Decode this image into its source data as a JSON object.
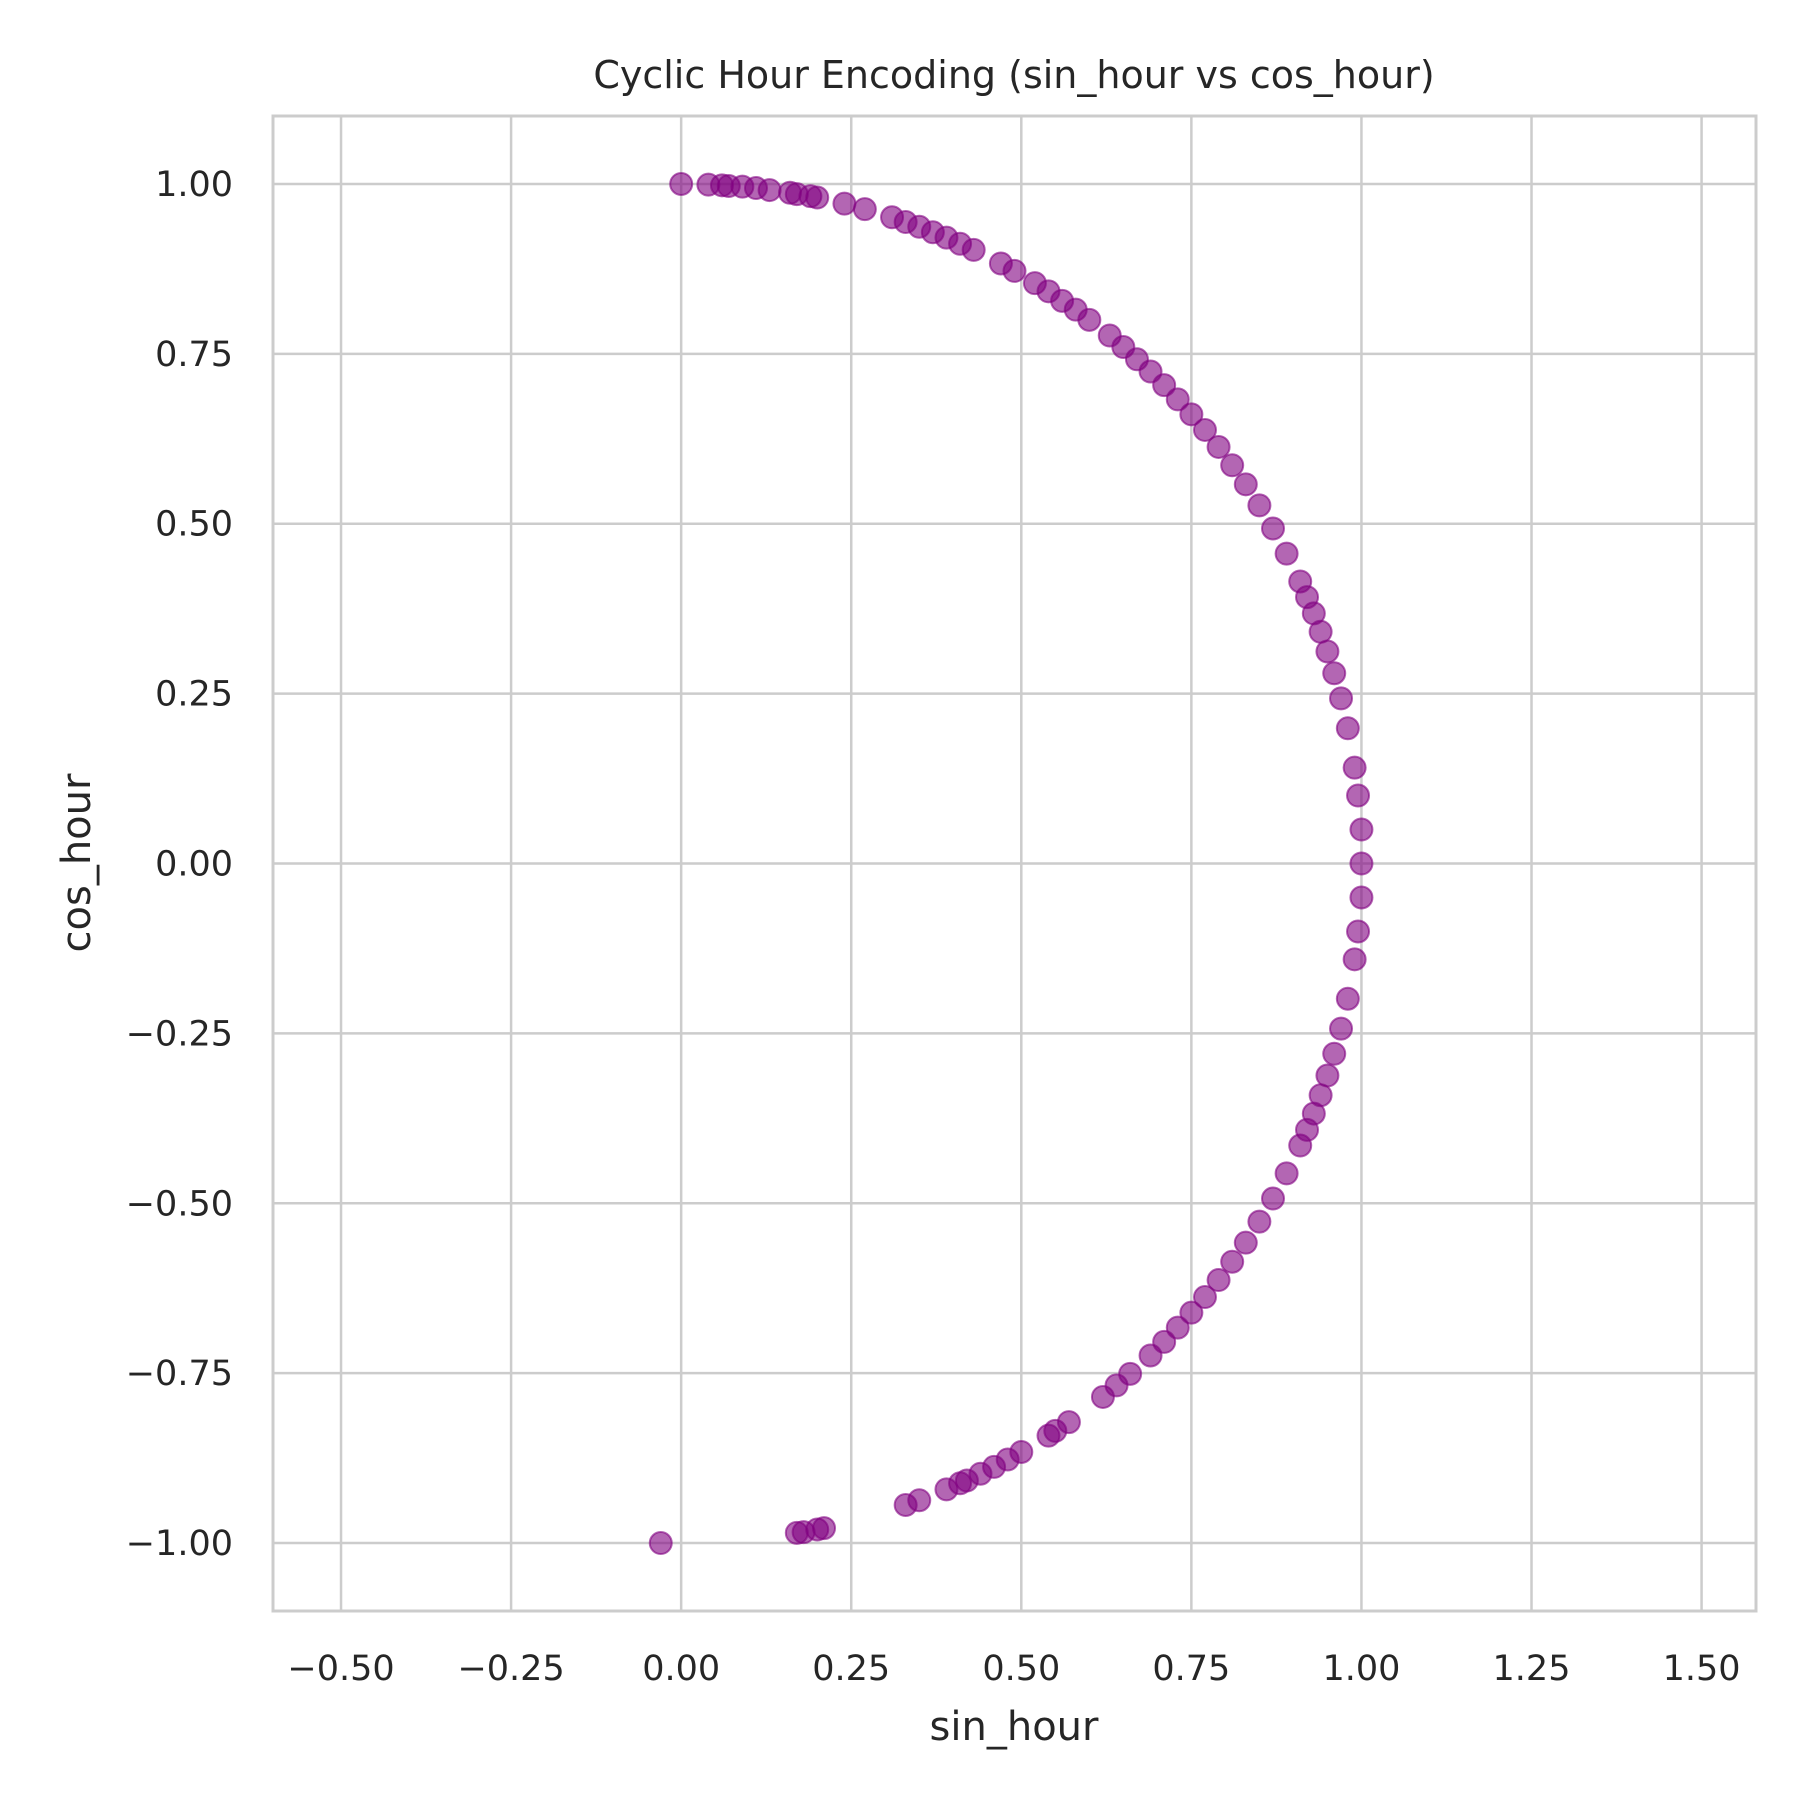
{
  "chart_data": {
    "type": "scatter",
    "title": "Cyclic Hour Encoding (sin_hour vs cos_hour)",
    "xlabel": "sin_hour",
    "ylabel": "cos_hour",
    "xlim": [
      -0.6,
      1.58
    ],
    "ylim": [
      -1.1,
      1.1
    ],
    "xticks": [
      -0.5,
      -0.25,
      0.0,
      0.25,
      0.5,
      0.75,
      1.0,
      1.25,
      1.5
    ],
    "yticks": [
      -1.0,
      -0.75,
      -0.5,
      -0.25,
      0.0,
      0.25,
      0.5,
      0.75,
      1.0
    ],
    "xtick_labels": [
      "−0.50",
      "−0.25",
      "0.00",
      "0.25",
      "0.50",
      "0.75",
      "1.00",
      "1.25",
      "1.50"
    ],
    "ytick_labels": [
      "−1.00",
      "−0.75",
      "−0.50",
      "−0.25",
      "0.00",
      "0.25",
      "0.50",
      "0.75",
      "1.00"
    ],
    "grid": true,
    "legend": "none",
    "marker_color": "#800080",
    "marker_alpha": 0.6,
    "points": [
      [
        0.0,
        1.0
      ],
      [
        0.04,
        0.999
      ],
      [
        0.06,
        0.998
      ],
      [
        0.07,
        0.997
      ],
      [
        0.09,
        0.996
      ],
      [
        0.11,
        0.994
      ],
      [
        0.13,
        0.991
      ],
      [
        0.16,
        0.987
      ],
      [
        0.17,
        0.985
      ],
      [
        0.19,
        0.982
      ],
      [
        0.2,
        0.98
      ],
      [
        0.24,
        0.971
      ],
      [
        0.27,
        0.963
      ],
      [
        0.31,
        0.951
      ],
      [
        0.33,
        0.944
      ],
      [
        0.35,
        0.937
      ],
      [
        0.37,
        0.929
      ],
      [
        0.39,
        0.921
      ],
      [
        0.41,
        0.912
      ],
      [
        0.43,
        0.903
      ],
      [
        0.47,
        0.883
      ],
      [
        0.49,
        0.872
      ],
      [
        0.52,
        0.854
      ],
      [
        0.54,
        0.842
      ],
      [
        0.56,
        0.828
      ],
      [
        0.58,
        0.815
      ],
      [
        0.6,
        0.8
      ],
      [
        0.63,
        0.777
      ],
      [
        0.65,
        0.76
      ],
      [
        0.67,
        0.742
      ],
      [
        0.69,
        0.724
      ],
      [
        0.71,
        0.704
      ],
      [
        0.73,
        0.683
      ],
      [
        0.75,
        0.661
      ],
      [
        0.77,
        0.638
      ],
      [
        0.79,
        0.613
      ],
      [
        0.81,
        0.586
      ],
      [
        0.83,
        0.558
      ],
      [
        0.85,
        0.527
      ],
      [
        0.87,
        0.493
      ],
      [
        0.89,
        0.456
      ],
      [
        0.91,
        0.415
      ],
      [
        0.92,
        0.392
      ],
      [
        0.93,
        0.368
      ],
      [
        0.94,
        0.341
      ],
      [
        0.95,
        0.312
      ],
      [
        0.96,
        0.28
      ],
      [
        0.97,
        0.243
      ],
      [
        0.98,
        0.199
      ],
      [
        0.99,
        0.141
      ],
      [
        0.995,
        0.1
      ],
      [
        1.0,
        0.05
      ],
      [
        1.0,
        0.0
      ],
      [
        1.0,
        -0.05
      ],
      [
        0.995,
        -0.1
      ],
      [
        0.99,
        -0.141
      ],
      [
        0.98,
        -0.199
      ],
      [
        0.97,
        -0.243
      ],
      [
        0.96,
        -0.28
      ],
      [
        0.95,
        -0.312
      ],
      [
        0.94,
        -0.341
      ],
      [
        0.93,
        -0.368
      ],
      [
        0.92,
        -0.392
      ],
      [
        0.91,
        -0.415
      ],
      [
        0.89,
        -0.456
      ],
      [
        0.87,
        -0.493
      ],
      [
        0.85,
        -0.527
      ],
      [
        0.83,
        -0.558
      ],
      [
        0.81,
        -0.586
      ],
      [
        0.79,
        -0.613
      ],
      [
        0.77,
        -0.638
      ],
      [
        0.75,
        -0.661
      ],
      [
        0.73,
        -0.683
      ],
      [
        0.71,
        -0.704
      ],
      [
        0.69,
        -0.724
      ],
      [
        0.66,
        -0.751
      ],
      [
        0.64,
        -0.768
      ],
      [
        0.62,
        -0.785
      ],
      [
        0.57,
        -0.822
      ],
      [
        0.55,
        -0.835
      ],
      [
        0.54,
        -0.842
      ],
      [
        0.5,
        -0.866
      ],
      [
        0.48,
        -0.877
      ],
      [
        0.46,
        -0.888
      ],
      [
        0.44,
        -0.898
      ],
      [
        0.42,
        -0.908
      ],
      [
        0.41,
        -0.912
      ],
      [
        0.39,
        -0.921
      ],
      [
        0.35,
        -0.937
      ],
      [
        0.33,
        -0.944
      ],
      [
        0.21,
        -0.978
      ],
      [
        0.2,
        -0.98
      ],
      [
        0.18,
        -0.984
      ],
      [
        0.17,
        -0.985
      ],
      [
        -0.03,
        -1.0
      ]
    ]
  }
}
